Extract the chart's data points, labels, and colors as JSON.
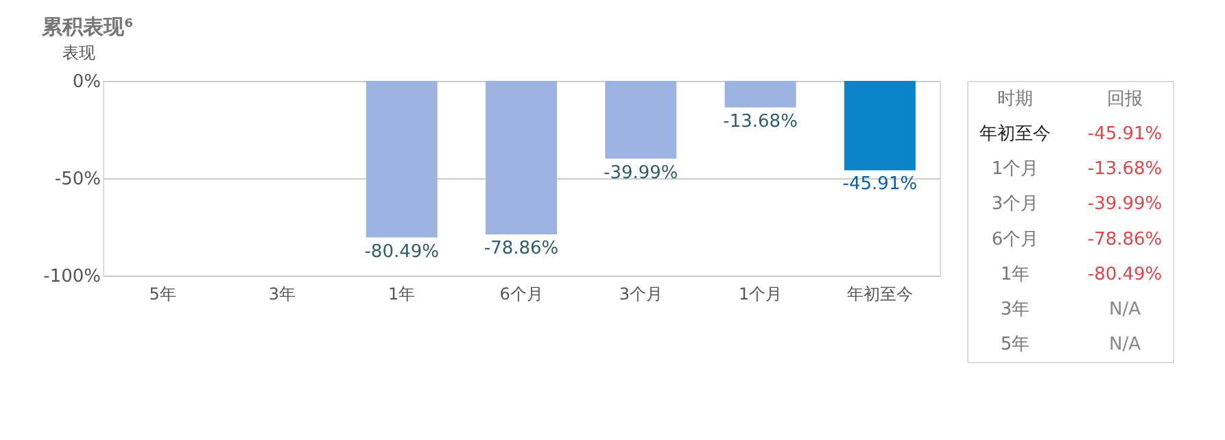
{
  "chart_data": {
    "type": "bar",
    "title": "累积表现⁶",
    "ylabel": "表现",
    "categories": [
      "5年",
      "3年",
      "1年",
      "6个月",
      "3个月",
      "1个月",
      "年初至今"
    ],
    "values": [
      null,
      null,
      -80.49,
      -78.86,
      -39.99,
      -13.68,
      -45.91
    ],
    "colors": [
      "#9db3e2",
      "#9db3e2",
      "#9db3e2",
      "#9db3e2",
      "#9db3e2",
      "#9db3e2",
      "#0b84c9"
    ],
    "value_labels": [
      null,
      null,
      "-80.49%",
      "-78.86%",
      "-39.99%",
      "-13.68%",
      "-45.91%"
    ],
    "ylim": [
      -100,
      0
    ],
    "yticks": [
      {
        "value": 0,
        "label": "0%"
      },
      {
        "value": -50,
        "label": "-50%"
      },
      {
        "value": -100,
        "label": "-100%"
      }
    ],
    "grid": "y",
    "annotations": [
      "时期",
      "回报",
      "N/A"
    ]
  }
}
